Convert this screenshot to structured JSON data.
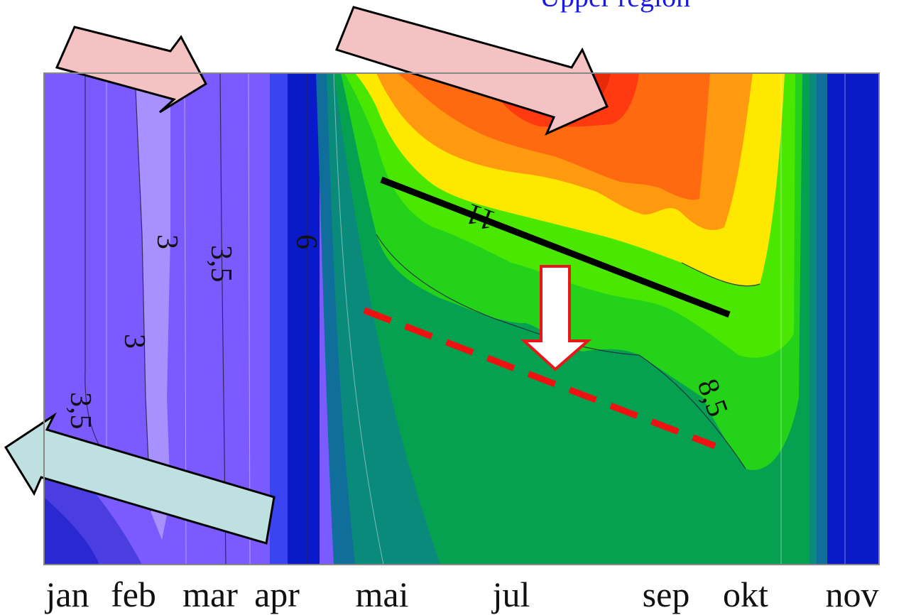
{
  "header": {
    "clipped_text": "Upper region"
  },
  "chart_data": {
    "type": "heatmap",
    "title": "",
    "xlabel": "",
    "ylabel": "",
    "x_ticks": [
      "jan",
      "feb",
      "mar",
      "apr",
      "mai",
      "jul",
      "sep",
      "okt",
      "nov"
    ],
    "contour_labels": [
      "3",
      "3,5",
      "6",
      "11",
      "3",
      "3,5",
      "8,5"
    ],
    "colors": {
      "low": "#7b5bff",
      "lowest": "#a890ff",
      "mid_blue": "#1f2ee0",
      "dark_blue": "#0a1ac8",
      "teal": "#0f6f9a",
      "green": "#05a050",
      "bright_green": "#3ee000",
      "yellow": "#ffe800",
      "orange": "#ff8a10",
      "red": "#ff3a10",
      "arrow_pink": "#f4c2c2",
      "arrow_blue": "#bfe0e0",
      "black_line": "#000000",
      "red_dashed": "#ee1111"
    },
    "annotations": [
      {
        "kind": "arrow",
        "color": "pink",
        "direction": "right"
      },
      {
        "kind": "arrow",
        "color": "pink",
        "direction": "down-right"
      },
      {
        "kind": "arrow",
        "color": "light-blue",
        "direction": "left"
      },
      {
        "kind": "arrow",
        "color": "white",
        "direction": "down"
      },
      {
        "kind": "line",
        "style": "solid",
        "color": "black"
      },
      {
        "kind": "line",
        "style": "dashed",
        "color": "red"
      }
    ]
  }
}
